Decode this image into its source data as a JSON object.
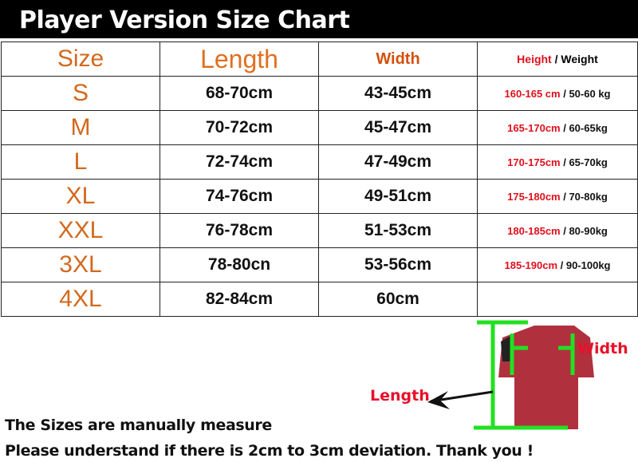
{
  "title": "Player Version Size Chart",
  "headers": {
    "size": "Size",
    "length": "Length",
    "width": "Width",
    "height": "Height",
    "slash": " / ",
    "weight": "Weight"
  },
  "rows": [
    {
      "size": "S",
      "length": "68-70cm",
      "width": "43-45cm",
      "height": "160-165 cm",
      "weight": "50-60 kg"
    },
    {
      "size": "M",
      "length": "70-72cm",
      "width": "45-47cm",
      "height": "165-170cm",
      "weight": "60-65kg"
    },
    {
      "size": "L",
      "length": "72-74cm",
      "width": "47-49cm",
      "height": "170-175cm",
      "weight": "65-70kg"
    },
    {
      "size": "XL",
      "length": "74-76cm",
      "width": "49-51cm",
      "height": "175-180cm",
      "weight": "70-80kg"
    },
    {
      "size": "XXL",
      "length": "76-78cm",
      "width": "51-53cm",
      "height": "180-185cm",
      "weight": "80-90kg"
    },
    {
      "size": "3XL",
      "length": "78-80cn",
      "width": "53-56cm",
      "height": "185-190cm",
      "weight": "90-100kg"
    },
    {
      "size": "4XL",
      "length": "82-84cm",
      "width": "60cm",
      "height": "",
      "weight": ""
    }
  ],
  "diagram": {
    "width_label": "Width",
    "length_label": "Length"
  },
  "notes": [
    "The Sizes are manually measure",
    "Please understand if there is 2cm to 3cm deviation. Thank you !"
  ],
  "colors": {
    "size_text": "#d2691e",
    "highlight_red": "#e0101c",
    "measure_line": "#22e022",
    "shirt": "#b0303e"
  }
}
